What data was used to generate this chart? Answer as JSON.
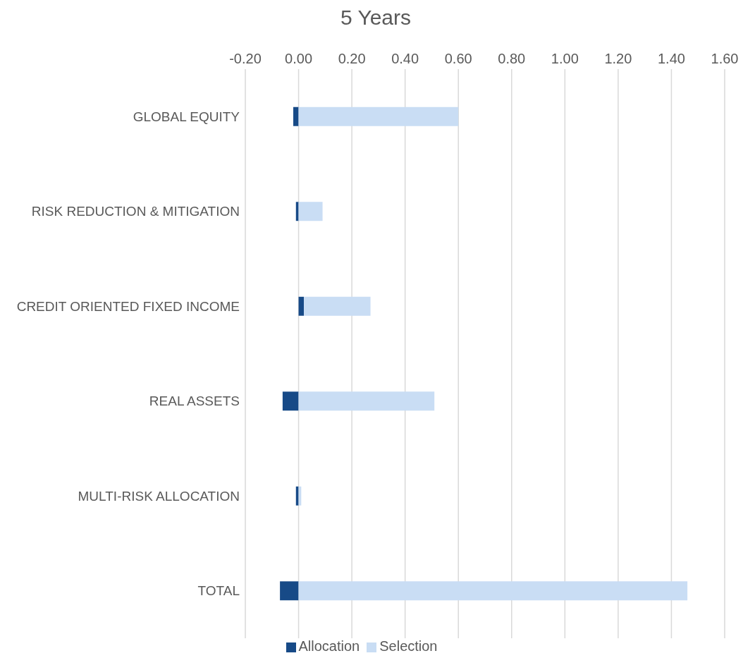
{
  "chart_data": {
    "type": "bar",
    "orientation": "horizontal",
    "stacked": true,
    "title": "5 Years",
    "categories": [
      "GLOBAL EQUITY",
      "RISK REDUCTION & MITIGATION",
      "CREDIT ORIENTED FIXED INCOME",
      "REAL ASSETS",
      "MULTI-RISK ALLOCATION",
      "TOTAL"
    ],
    "series": [
      {
        "name": "Allocation",
        "color": "#174a87",
        "values": [
          -0.02,
          -0.01,
          0.02,
          -0.06,
          -0.01,
          -0.07
        ]
      },
      {
        "name": "Selection",
        "color": "#c9ddf4",
        "values": [
          0.6,
          0.09,
          0.25,
          0.51,
          0.01,
          1.46
        ]
      }
    ],
    "xlim": [
      -0.2,
      1.6
    ],
    "xticks": [
      {
        "value": -0.2,
        "label": "-0.20"
      },
      {
        "value": 0,
        "label": "0.00"
      },
      {
        "value": 0.2,
        "label": "0.20"
      },
      {
        "value": 0.4,
        "label": "0.40"
      },
      {
        "value": 0.6,
        "label": "0.60"
      },
      {
        "value": 0.8,
        "label": "0.80"
      },
      {
        "value": 1.0,
        "label": "1.00"
      },
      {
        "value": 1.2,
        "label": "1.20"
      },
      {
        "value": 1.4,
        "label": "1.40"
      },
      {
        "value": 1.6,
        "label": "1.60"
      }
    ],
    "grid": "x",
    "legend": "bottom"
  }
}
